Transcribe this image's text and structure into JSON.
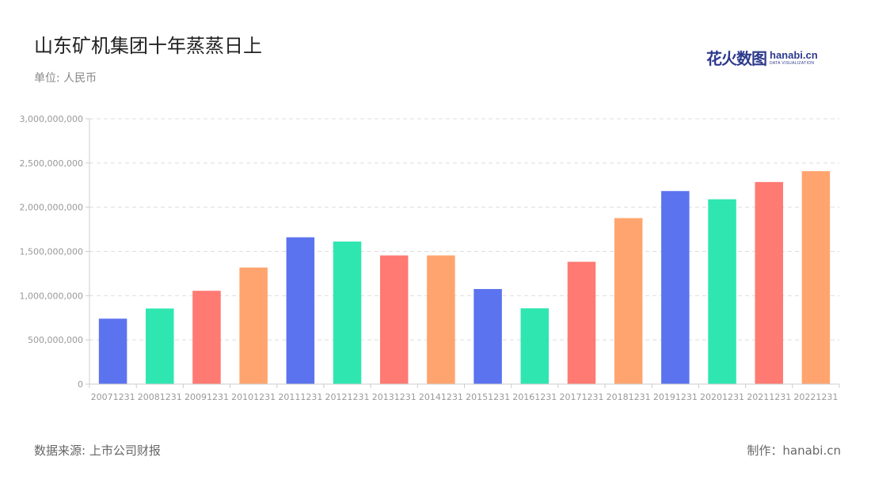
{
  "header": {
    "title": "山东矿机集团十年蒸蒸日上",
    "unit": "单位: 人民币"
  },
  "logo": {
    "cn": "花火数图",
    "en": "hanabi.cn",
    "sub": "DATA VISUALIZATION"
  },
  "footer": {
    "source": "数据来源: 上市公司财报",
    "credit": "制作：hanabi.cn"
  },
  "colors": {
    "palette": [
      "#5b73ee",
      "#2fe6b1",
      "#ff7a72",
      "#ffa46e"
    ],
    "grid": "#dddddd",
    "axis": "#cccccc"
  },
  "chart_data": {
    "type": "bar",
    "categories": [
      "20071231",
      "20081231",
      "20091231",
      "20101231",
      "20111231",
      "20121231",
      "20131231",
      "20141231",
      "20151231",
      "20161231",
      "20171231",
      "20181231",
      "20191231",
      "20201231",
      "20211231",
      "20221231"
    ],
    "values": [
      740000000,
      855000000,
      1055000000,
      1318000000,
      1660000000,
      1612000000,
      1455000000,
      1455000000,
      1075000000,
      857000000,
      1383000000,
      1877000000,
      2183000000,
      2090000000,
      2285000000,
      2408000000
    ],
    "ylim": [
      0,
      3000000000
    ],
    "yticks": [
      0,
      500000000,
      1000000000,
      1500000000,
      2000000000,
      2500000000,
      3000000000
    ],
    "ytick_labels": [
      "0",
      "500,000,000",
      "1,000,000,000",
      "1,500,000,000",
      "2,000,000,000",
      "2,500,000,000",
      "3,000,000,000"
    ],
    "grid": true,
    "legend": "none"
  }
}
